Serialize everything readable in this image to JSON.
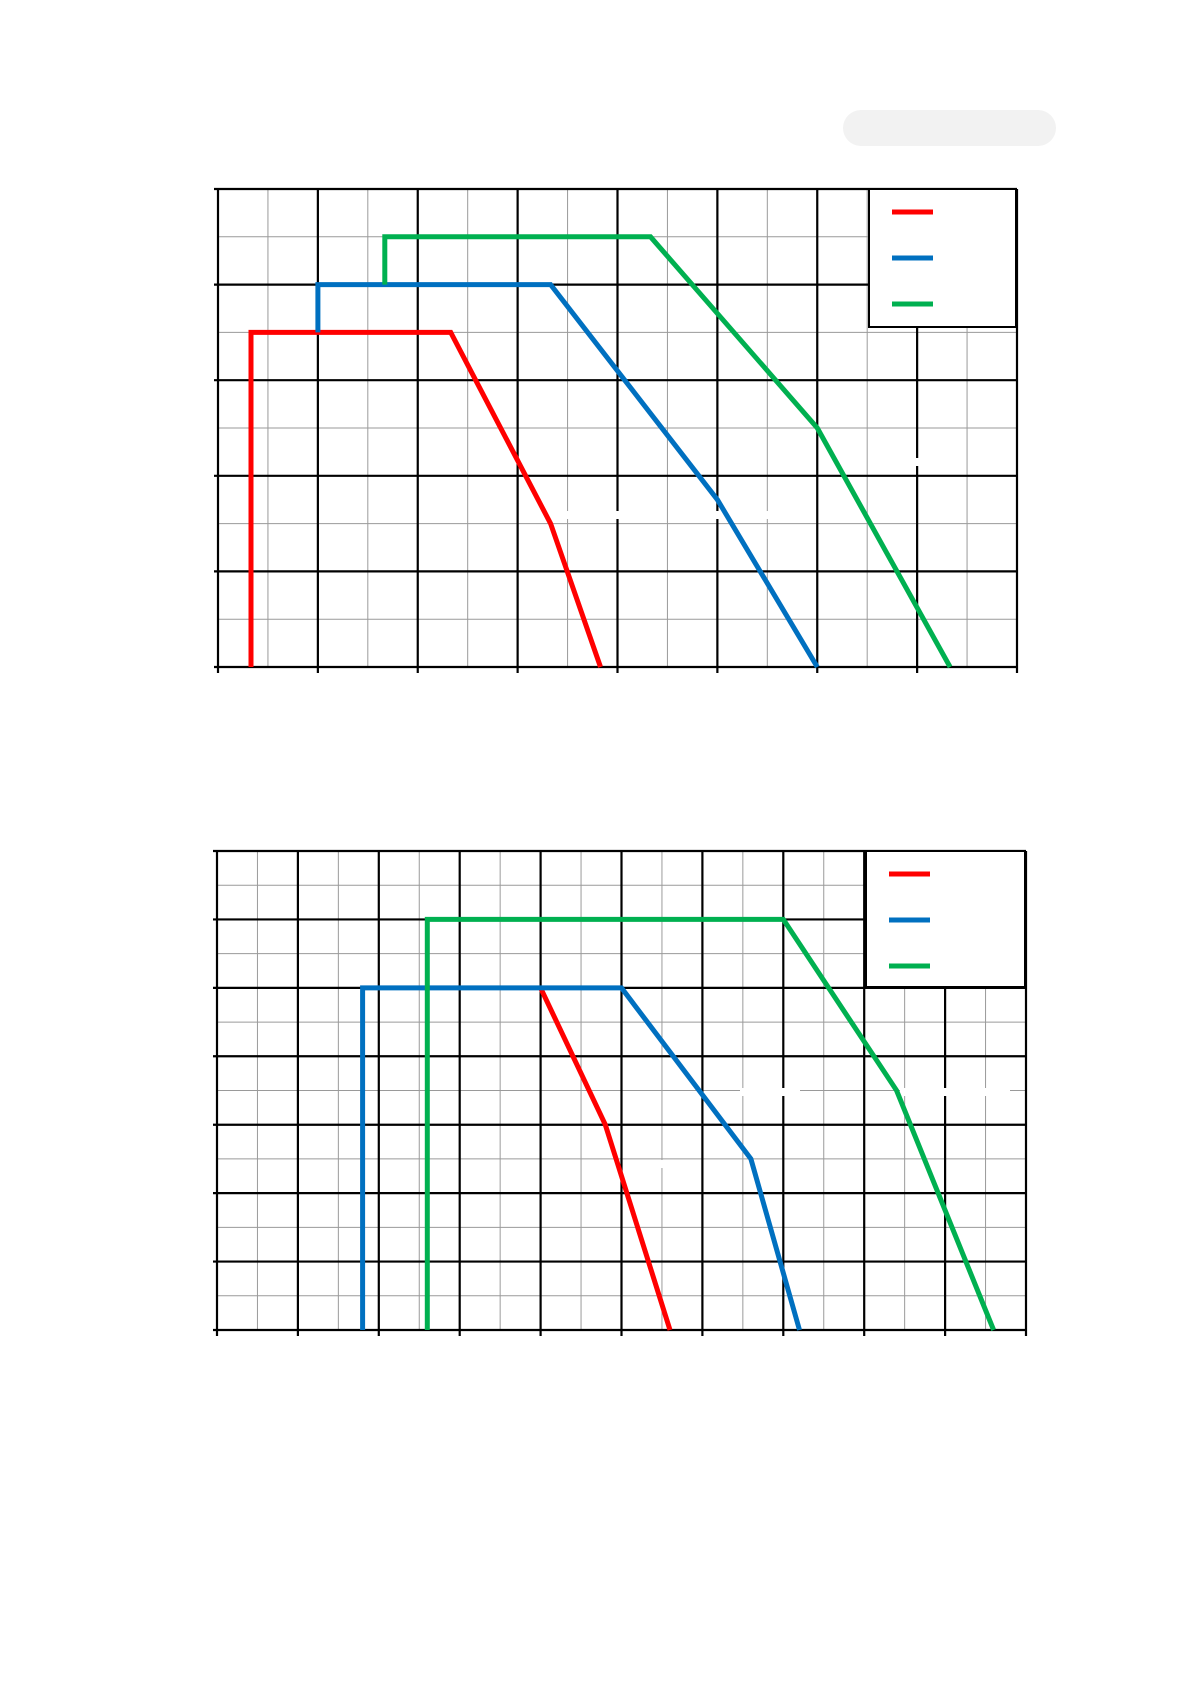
{
  "header": {
    "badge_text": ""
  },
  "chart_data": [
    {
      "type": "line",
      "title": "",
      "xlabel": "",
      "ylabel": "",
      "xlim": [
        0,
        8
      ],
      "ylim": [
        0,
        5
      ],
      "grid": true,
      "legend_position": "top-right",
      "series": [
        {
          "color": "#ff0000",
          "points": [
            [
              0.33,
              0
            ],
            [
              0.33,
              3.5
            ],
            [
              2.33,
              3.5
            ],
            [
              3.33,
              1.5
            ],
            [
              3.83,
              0
            ]
          ]
        },
        {
          "color": "#0070c0",
          "points": [
            [
              1.0,
              3.5
            ],
            [
              1.0,
              4.0
            ],
            [
              3.33,
              4.0
            ],
            [
              5.0,
              1.75
            ],
            [
              6.0,
              0
            ]
          ]
        },
        {
          "color": "#00b050",
          "points": [
            [
              1.67,
              4.0
            ],
            [
              1.67,
              4.5
            ],
            [
              4.33,
              4.5
            ],
            [
              6.0,
              2.5
            ],
            [
              7.33,
              0
            ]
          ]
        }
      ]
    },
    {
      "type": "line",
      "title": "",
      "xlabel": "",
      "ylabel": "",
      "xlim": [
        0,
        10
      ],
      "ylim": [
        0,
        7
      ],
      "grid": true,
      "legend_position": "top-right",
      "series": [
        {
          "color": "#ff0000",
          "points": [
            [
              4.0,
              5.0
            ],
            [
              4.8,
              3.0
            ],
            [
              5.6,
              0
            ]
          ]
        },
        {
          "color": "#0070c0",
          "points": [
            [
              1.8,
              0
            ],
            [
              1.8,
              5.0
            ],
            [
              5.0,
              5.0
            ],
            [
              6.6,
              2.5
            ],
            [
              7.2,
              0
            ]
          ]
        },
        {
          "color": "#00b050",
          "points": [
            [
              2.6,
              0
            ],
            [
              2.6,
              6.0
            ],
            [
              7.0,
              6.0
            ],
            [
              8.4,
              3.5
            ],
            [
              9.6,
              0
            ]
          ]
        }
      ]
    }
  ]
}
